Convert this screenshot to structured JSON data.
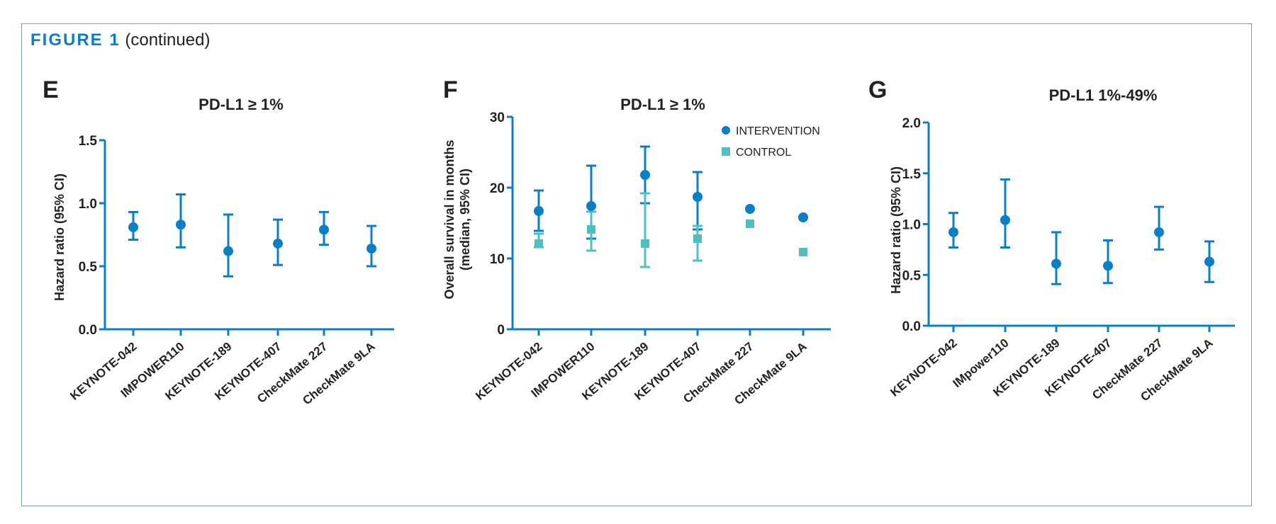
{
  "figure": {
    "label": "FIGURE 1",
    "suffix": "(continued)",
    "border_color": "#7f9bb5"
  },
  "colors": {
    "intervention": "#0a7fc6",
    "control": "#4fbfbf",
    "axis": "#0a7fc6",
    "text": "#222222"
  },
  "chart_data": [
    {
      "panel": "E",
      "type": "scatter",
      "title": "PD-L1 ≥ 1%",
      "xlabel": "",
      "ylabel": "Hazard ratio (95% CI)",
      "ylim": [
        0,
        1.5
      ],
      "yticks": [
        0.0,
        0.5,
        1.0,
        1.5
      ],
      "ytick_labels": [
        "0.0",
        "0.5",
        "1.0",
        "1.5"
      ],
      "grid": false,
      "categories": [
        "KEYNOTE-042",
        "IMPOWER110",
        "KEYNOTE-189",
        "KEYNOTE-407",
        "CheckMate 227",
        "CheckMate 9LA"
      ],
      "series": [
        {
          "name": "Hazard ratio",
          "marker": "circle",
          "color": "#0a7fc6",
          "values": [
            0.81,
            0.83,
            0.62,
            0.68,
            0.79,
            0.64
          ],
          "ci_low": [
            0.71,
            0.65,
            0.42,
            0.51,
            0.67,
            0.5
          ],
          "ci_high": [
            0.93,
            1.07,
            0.91,
            0.87,
            0.93,
            0.82
          ]
        }
      ]
    },
    {
      "panel": "F",
      "type": "scatter",
      "title": "PD-L1 ≥ 1%",
      "xlabel": "",
      "ylabel": "Overall survival in months",
      "ylabel2": "(median, 95% CI)",
      "ylim": [
        0,
        30
      ],
      "yticks": [
        0,
        10,
        20,
        30
      ],
      "ytick_labels": [
        "0",
        "10",
        "20",
        "30"
      ],
      "grid": false,
      "legend_position": "top-right",
      "categories": [
        "KEYNOTE-042",
        "IMPOWER110",
        "KEYNOTE-189",
        "KEYNOTE-407",
        "CheckMate 227",
        "CheckMate 9LA"
      ],
      "series": [
        {
          "name": "INTERVENTION",
          "marker": "circle",
          "color": "#0a7fc6",
          "values": [
            16.7,
            17.4,
            21.8,
            18.7,
            17.0,
            15.8
          ],
          "ci_low": [
            13.9,
            12.8,
            17.8,
            14.1,
            null,
            null
          ],
          "ci_high": [
            19.6,
            23.1,
            25.8,
            22.2,
            null,
            null
          ]
        },
        {
          "name": "CONTROL",
          "marker": "square",
          "color": "#4fbfbf",
          "values": [
            12.1,
            14.1,
            12.1,
            12.8,
            14.9,
            10.9
          ],
          "ci_low": [
            11.6,
            11.1,
            8.8,
            9.7,
            null,
            null
          ],
          "ci_high": [
            13.5,
            16.6,
            19.2,
            14.6,
            null,
            null
          ]
        }
      ]
    },
    {
      "panel": "G",
      "type": "scatter",
      "title": "PD-L1 1%-49%",
      "xlabel": "",
      "ylabel": "Hazard ratio (95% CI)",
      "ylim": [
        0,
        2.0
      ],
      "yticks": [
        0.0,
        0.5,
        1.0,
        1.5,
        2.0
      ],
      "ytick_labels": [
        "0.0",
        "0.5",
        "1.0",
        "1.5",
        "2.0"
      ],
      "grid": false,
      "categories": [
        "KEYNOTE-042",
        "IMpower110",
        "KEYNOTE-189",
        "KEYNOTE-407",
        "CheckMate 227",
        "CheckMate 9LA"
      ],
      "series": [
        {
          "name": "Hazard ratio",
          "marker": "circle",
          "color": "#0a7fc6",
          "values": [
            0.92,
            1.04,
            0.61,
            0.59,
            0.92,
            0.63
          ],
          "ci_low": [
            0.77,
            0.77,
            0.41,
            0.42,
            0.75,
            0.43
          ],
          "ci_high": [
            1.11,
            1.44,
            0.92,
            0.84,
            1.17,
            0.83
          ]
        }
      ]
    }
  ]
}
